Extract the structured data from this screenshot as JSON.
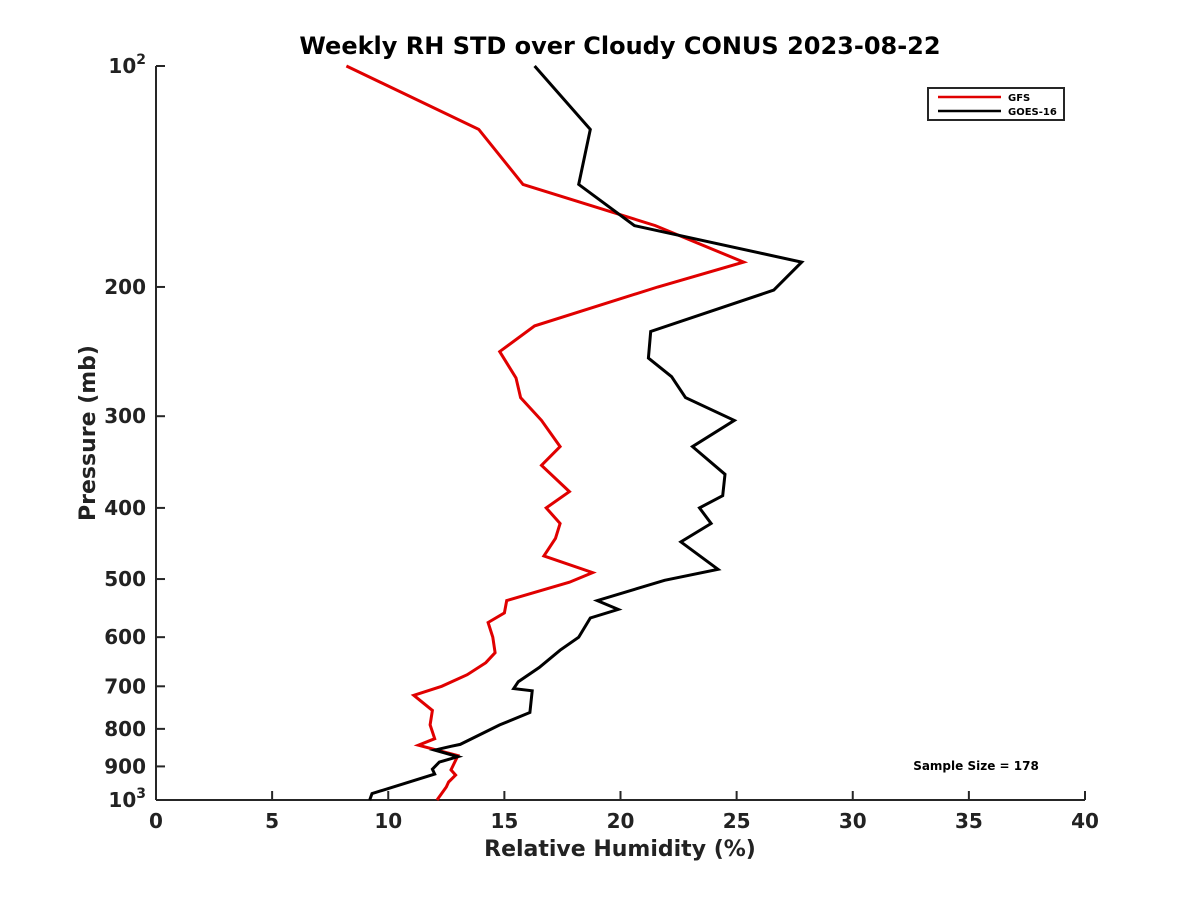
{
  "chart_data": {
    "type": "line",
    "title": "Weekly RH STD over Cloudy CONUS 2023-08-22",
    "xlabel": "Relative Humidity (%)",
    "ylabel": "Pressure (mb)",
    "xlim": [
      0,
      40
    ],
    "ylim": [
      100,
      1000
    ],
    "y_scale": "log",
    "y_reversed": true,
    "grid": false,
    "legend_position": "top-right",
    "x_ticks": [
      "0",
      "5",
      "10",
      "15",
      "20",
      "25",
      "30",
      "35",
      "40"
    ],
    "y_ticks": [
      {
        "value": 100,
        "base": "10",
        "exp": "2"
      },
      {
        "value": 200,
        "label": "200"
      },
      {
        "value": 300,
        "label": "300"
      },
      {
        "value": 400,
        "label": "400"
      },
      {
        "value": 500,
        "label": "500"
      },
      {
        "value": 600,
        "label": "600"
      },
      {
        "value": 700,
        "label": "700"
      },
      {
        "value": 800,
        "label": "800"
      },
      {
        "value": 900,
        "label": "900"
      },
      {
        "value": 1000,
        "base": "10",
        "exp": "3"
      }
    ],
    "series": [
      {
        "name": "GFS",
        "color": "#e00000",
        "x": [
          8.2,
          13.9,
          15.8,
          21.5,
          25.3,
          21.6,
          16.3,
          14.8,
          15.5,
          15.7,
          16.6,
          17.4,
          16.6,
          17.8,
          16.8,
          17.4,
          17.2,
          16.7,
          18.8,
          17.8,
          15.1,
          15.0,
          14.3,
          14.5,
          14.6,
          14.2,
          13.4,
          12.3,
          11.1,
          11.9,
          11.8,
          12.0,
          11.3,
          13.0,
          12.7,
          12.9,
          12.6,
          12.5,
          12.1
        ],
        "y": [
          100,
          122,
          145,
          165,
          185,
          200,
          226,
          245,
          266,
          283,
          304,
          330,
          350,
          380,
          400,
          420,
          440,
          465,
          490,
          505,
          535,
          556,
          573,
          600,
          630,
          650,
          675,
          700,
          720,
          755,
          790,
          825,
          842,
          870,
          910,
          925,
          945,
          960,
          1000
        ]
      },
      {
        "name": "GOES-16",
        "color": "#000000",
        "x": [
          16.3,
          18.7,
          18.2,
          20.6,
          27.8,
          26.6,
          21.3,
          21.2,
          22.2,
          22.8,
          24.9,
          23.1,
          24.5,
          24.4,
          23.4,
          23.9,
          22.6,
          24.2,
          21.9,
          19.0,
          19.9,
          18.7,
          18.2,
          17.4,
          16.5,
          15.6,
          15.4,
          16.2,
          16.1,
          14.8,
          13.1,
          12.7,
          12.0,
          13.0,
          12.2,
          11.9,
          12.0,
          9.3,
          9.2
        ],
        "y": [
          100,
          122,
          145,
          165,
          185,
          202,
          230,
          250,
          265,
          283,
          304,
          330,
          360,
          385,
          400,
          420,
          445,
          485,
          502,
          535,
          550,
          565,
          600,
          625,
          660,
          690,
          705,
          710,
          760,
          790,
          840,
          845,
          855,
          873,
          888,
          908,
          922,
          980,
          1000
        ]
      }
    ],
    "annotations": [
      "Sample Size = 178"
    ]
  }
}
